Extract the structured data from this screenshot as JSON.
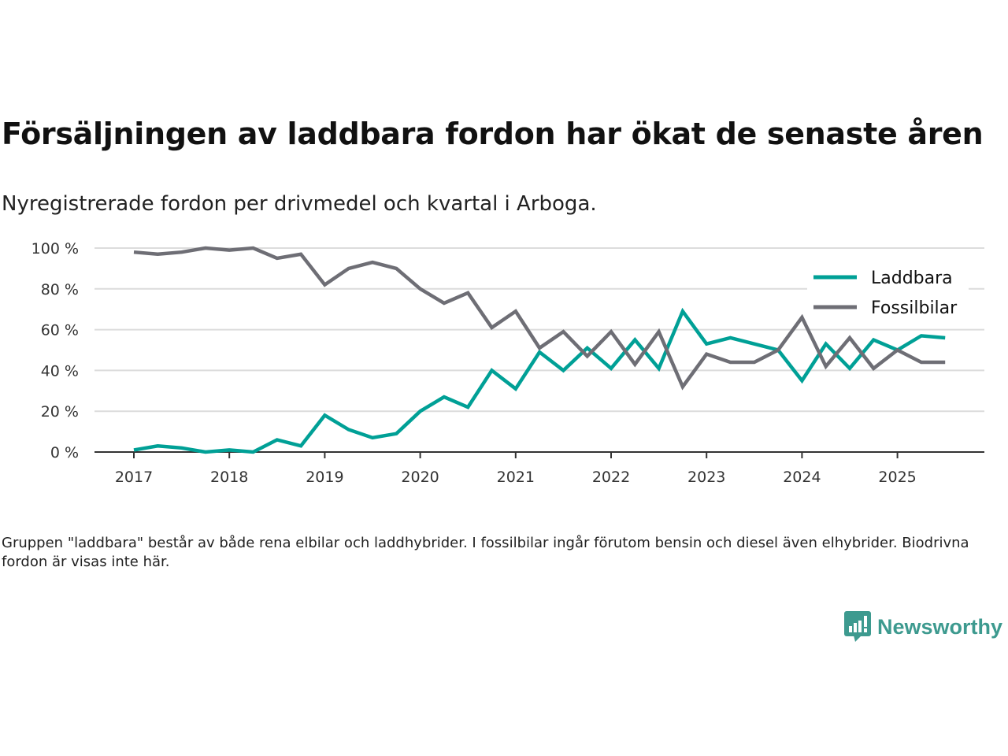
{
  "title": "Försäljningen av laddbara fordon har ökat de senaste åren",
  "subtitle": "Nyregistrerade fordon per drivmedel och kvartal i Arboga.",
  "footnote": "Gruppen \"laddbara\" består av både rena elbilar och laddhybrider. I fossilbilar ingår förutom bensin och diesel även elhybrider. Biodrivna fordon är visas inte här.",
  "logo": {
    "text": "Newsworthy",
    "color": "#3d9a8f"
  },
  "chart_data": {
    "type": "line",
    "title": "Försäljningen av laddbara fordon har ökat de senaste åren",
    "xlabel": "",
    "ylabel": "",
    "ylim": [
      0,
      100
    ],
    "yticks": [
      0,
      20,
      40,
      60,
      80,
      100
    ],
    "ytick_labels": [
      "0 %",
      "20 %",
      "40 %",
      "60 %",
      "80 %",
      "100 %"
    ],
    "xtick_labels": [
      "2017",
      "2018",
      "2019",
      "2020",
      "2021",
      "2022",
      "2023",
      "2024",
      "2025"
    ],
    "grid": true,
    "legend": "top-right",
    "x": [
      "2017Q1",
      "2017Q2",
      "2017Q3",
      "2017Q4",
      "2018Q1",
      "2018Q2",
      "2018Q3",
      "2018Q4",
      "2019Q1",
      "2019Q2",
      "2019Q3",
      "2019Q4",
      "2020Q1",
      "2020Q2",
      "2020Q3",
      "2020Q4",
      "2021Q1",
      "2021Q2",
      "2021Q3",
      "2021Q4",
      "2022Q1",
      "2022Q2",
      "2022Q3",
      "2022Q4",
      "2023Q1",
      "2023Q2",
      "2023Q3",
      "2023Q4",
      "2024Q1",
      "2024Q2",
      "2024Q3",
      "2024Q4",
      "2025Q1",
      "2025Q2",
      "2025Q3"
    ],
    "series": [
      {
        "name": "Laddbara",
        "color": "#00a096",
        "values": [
          1,
          3,
          2,
          0,
          1,
          0,
          6,
          3,
          18,
          11,
          7,
          9,
          20,
          27,
          22,
          40,
          31,
          49,
          40,
          51,
          41,
          55,
          41,
          69,
          53,
          56,
          53,
          50,
          35,
          53,
          41,
          55,
          50,
          57,
          56
        ]
      },
      {
        "name": "Fossilbilar",
        "color": "#6e6e75",
        "values": [
          98,
          97,
          98,
          100,
          99,
          100,
          95,
          97,
          82,
          90,
          93,
          90,
          80,
          73,
          78,
          61,
          69,
          51,
          59,
          47,
          59,
          43,
          59,
          32,
          48,
          44,
          44,
          50,
          66,
          42,
          56,
          41,
          50,
          44,
          44
        ]
      }
    ]
  }
}
